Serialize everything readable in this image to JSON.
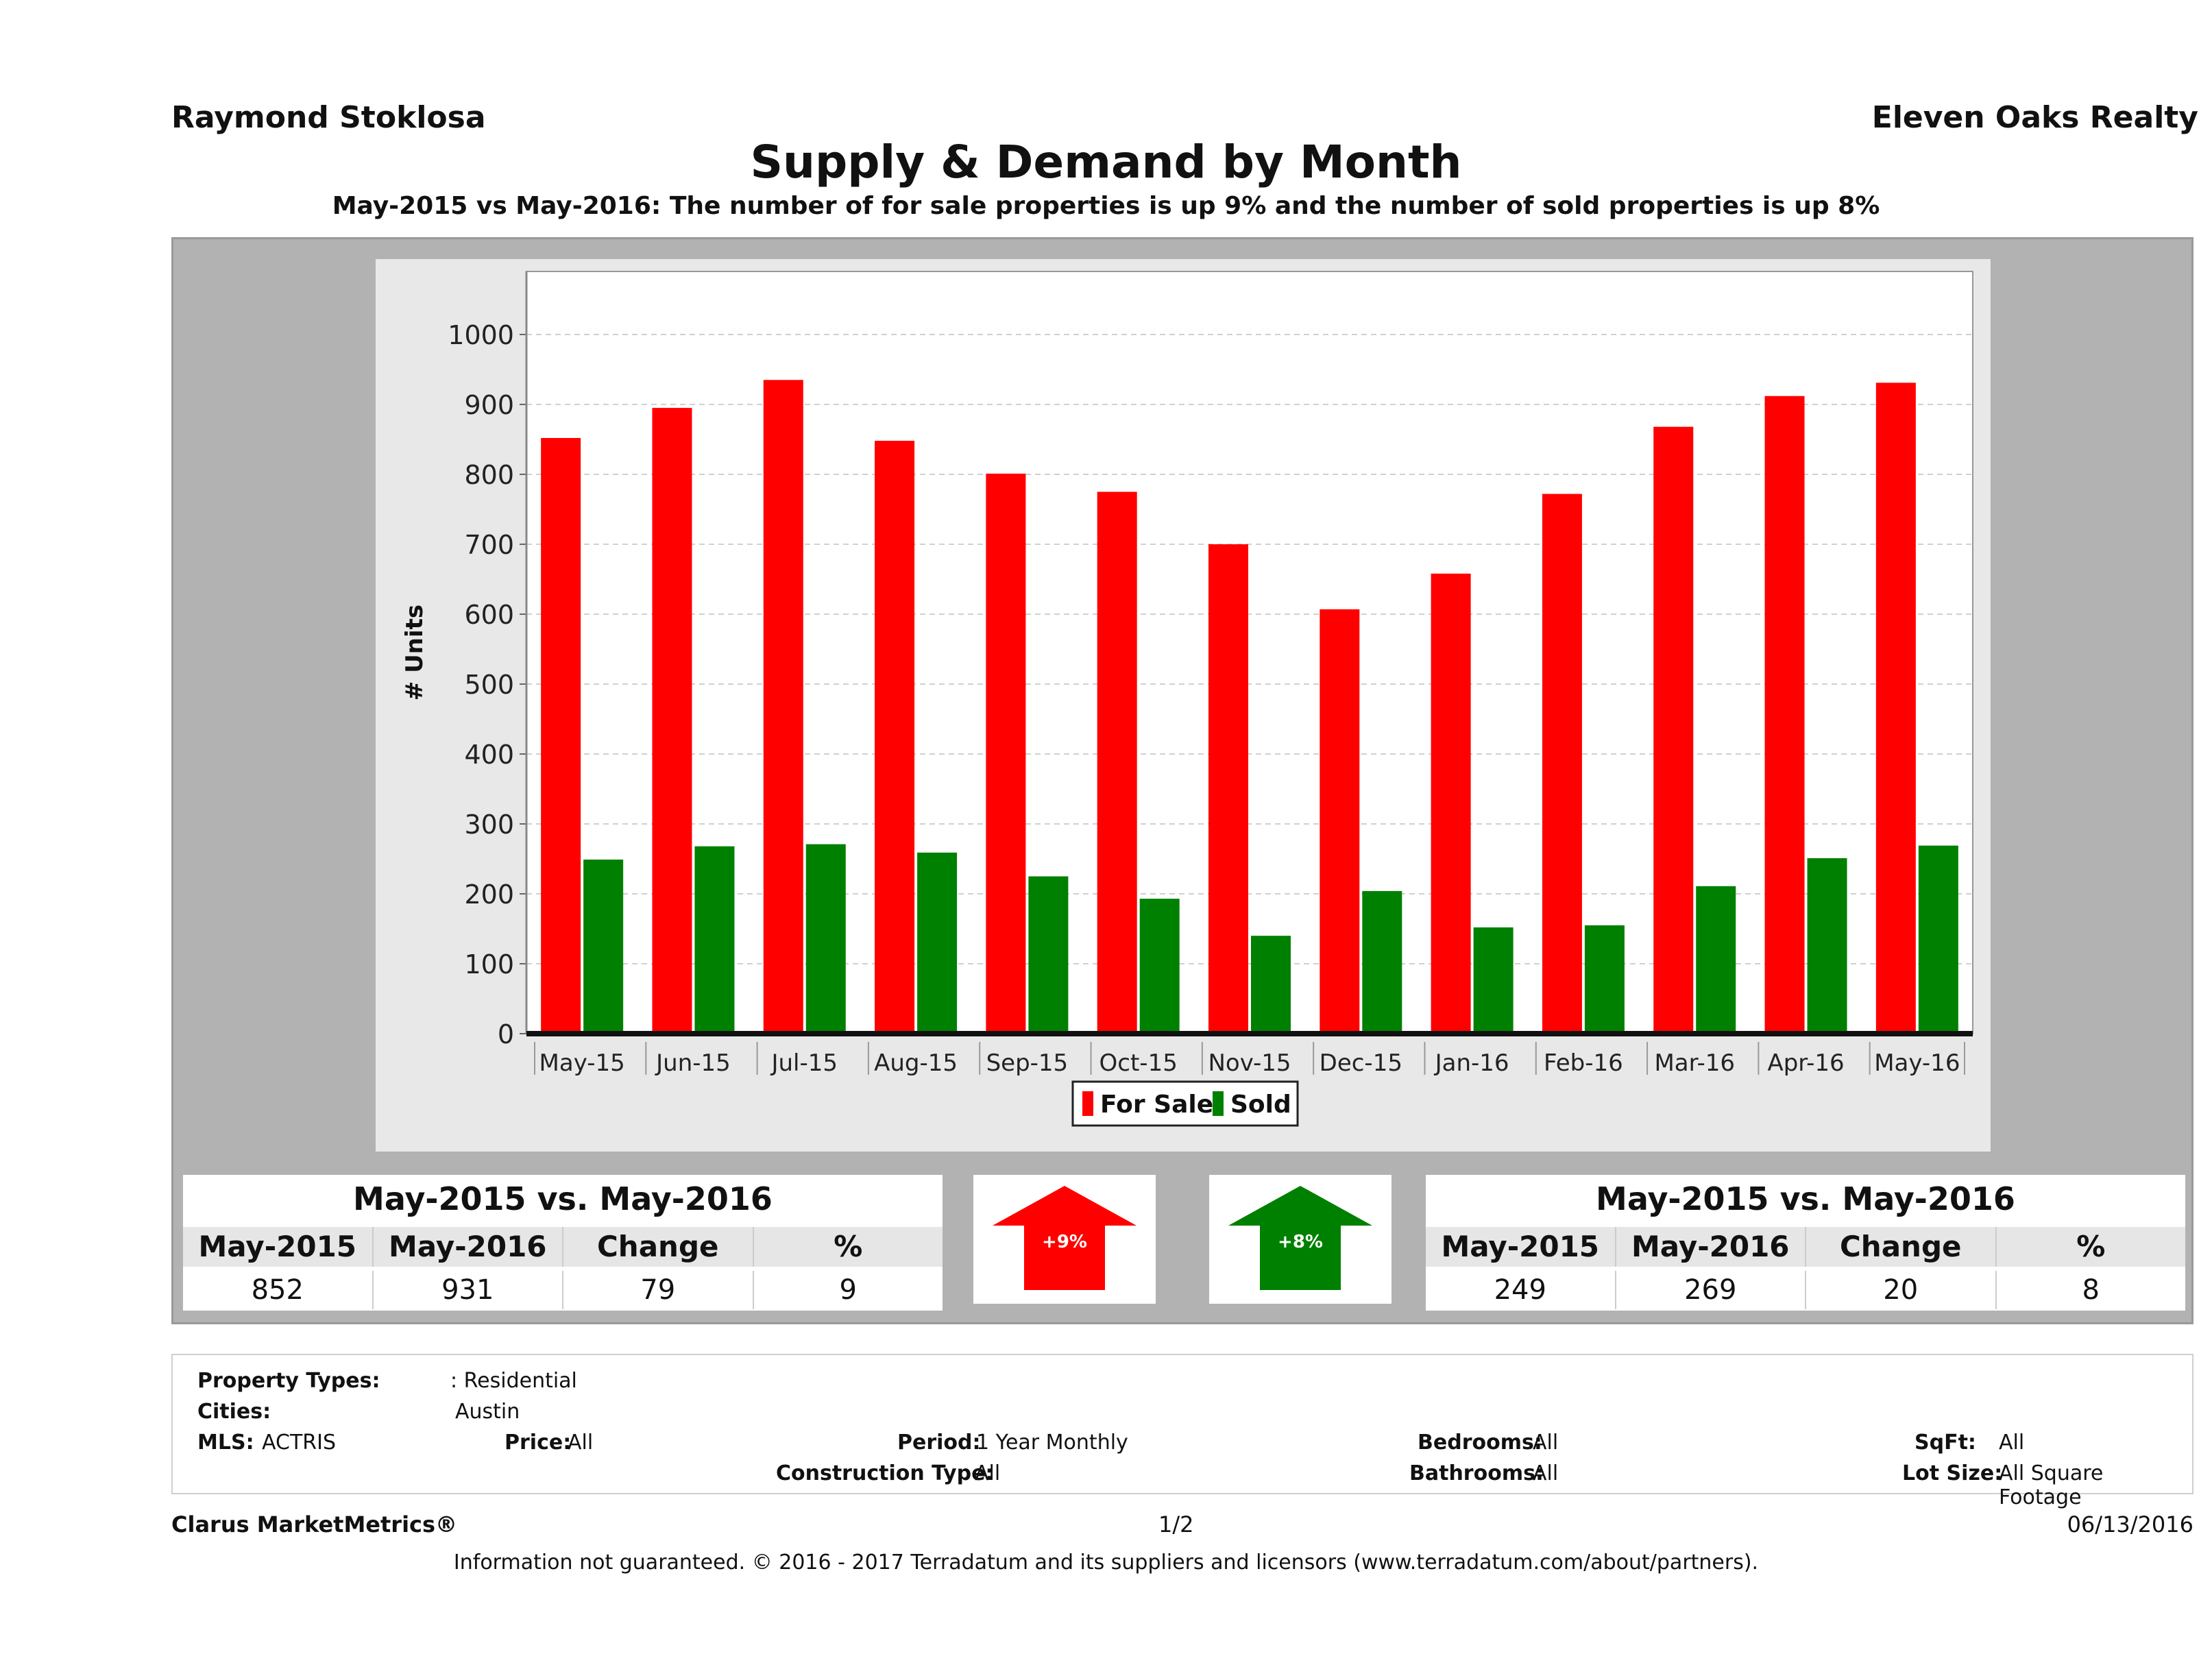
{
  "header": {
    "agent_name": "Raymond Stoklosa",
    "company_name": "Eleven Oaks Realty",
    "title": "Supply & Demand by Month",
    "subtitle": "May-2015 vs May-2016: The number of for sale properties is up 9% and the number of sold properties is up 8%"
  },
  "chart_data": {
    "type": "bar",
    "categories": [
      "May-15",
      "Jun-15",
      "Jul-15",
      "Aug-15",
      "Sep-15",
      "Oct-15",
      "Nov-15",
      "Dec-15",
      "Jan-16",
      "Feb-16",
      "Mar-16",
      "Apr-16",
      "May-16"
    ],
    "series": [
      {
        "name": "For Sale",
        "color": "#ff0000",
        "values": [
          852,
          895,
          935,
          848,
          801,
          775,
          700,
          607,
          658,
          772,
          868,
          912,
          931
        ]
      },
      {
        "name": "Sold",
        "color": "#008000",
        "values": [
          249,
          268,
          271,
          259,
          225,
          193,
          140,
          204,
          152,
          155,
          211,
          251,
          269
        ]
      }
    ],
    "ylabel": "# Units",
    "xlabel": "",
    "ylim": [
      0,
      1000
    ],
    "yticks": [
      0,
      100,
      200,
      300,
      400,
      500,
      600,
      700,
      800,
      900,
      1000
    ],
    "grid": true,
    "legend_position": "bottom-center"
  },
  "for_sale_table": {
    "heading": "May-2015 vs. May-2016",
    "columns": [
      "May-2015",
      "May-2016",
      "Change",
      "%"
    ],
    "values": [
      "852",
      "931",
      "79",
      "9"
    ]
  },
  "sold_table": {
    "heading": "May-2015 vs. May-2016",
    "columns": [
      "May-2015",
      "May-2016",
      "Change",
      "%"
    ],
    "values": [
      "249",
      "269",
      "20",
      "8"
    ]
  },
  "arrows": {
    "for_sale": {
      "label": "+9%",
      "color": "#ff0000",
      "icon": "up-arrow-icon"
    },
    "sold": {
      "label": "+8%",
      "color": "#008000",
      "icon": "up-arrow-icon"
    }
  },
  "filters": {
    "property_types_label": "Property Types:",
    "property_types_value": ": Residential",
    "cities_label": "Cities:",
    "cities_value": "Austin",
    "mls_label": "MLS:",
    "mls_value": "ACTRIS",
    "price_label": "Price:",
    "price_value": "All",
    "period_label": "Period:",
    "period_value": "1 Year Monthly",
    "construction_label": "Construction Type:",
    "construction_value": "All",
    "bedrooms_label": "Bedrooms:",
    "bedrooms_value": "All",
    "bathrooms_label": "Bathrooms:",
    "bathrooms_value": "All",
    "sqft_label": "SqFt:",
    "sqft_value": "All",
    "lotsize_label": "Lot Size:",
    "lotsize_value": "All Square Footage"
  },
  "footer": {
    "brand": "Clarus MarketMetrics®",
    "page": "1/2",
    "date": "06/13/2016",
    "disclaimer": "Information not guaranteed. © 2016 - 2017 Terradatum and its suppliers and licensors (www.terradatum.com/about/partners)."
  }
}
